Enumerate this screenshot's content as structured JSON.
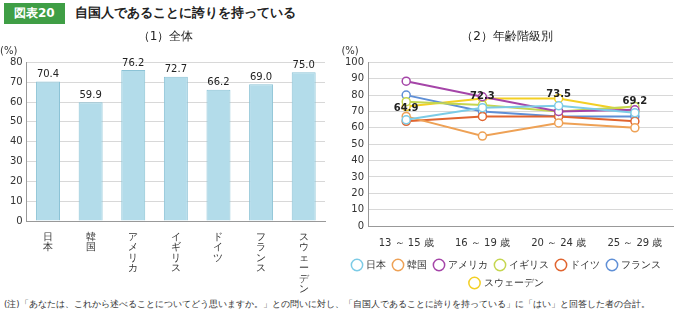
{
  "figure_label": "図表20",
  "title": "自国人であることに誇りを持っている",
  "note": "(注)「あなたは、これから述べることについてどう思いますか。」との問いに対し、「自国人であることに誇りを持っている」に「はい」と回答した者の合計。",
  "chart_data": [
    {
      "type": "bar",
      "title": "（1）全体",
      "ylabel": "(%)",
      "categories": [
        "日本",
        "韓国",
        "アメリカ",
        "イギリス",
        "ドイツ",
        "フランス",
        "スウェーデン"
      ],
      "values": [
        70.4,
        59.9,
        76.2,
        72.7,
        66.2,
        69.0,
        75.0
      ],
      "value_labels": [
        "70.4",
        "59.9",
        "76.2",
        "72.7",
        "66.2",
        "69.0",
        "75.0"
      ],
      "color": "#b3dcea",
      "ylim": [
        0,
        80
      ],
      "yticks": [
        0,
        10,
        20,
        30,
        40,
        50,
        60,
        70,
        80
      ],
      "grid": true,
      "data_labels": true
    },
    {
      "type": "line",
      "title": "（2）年齢階級別",
      "ylabel": "(%)",
      "categories": [
        "13 ～ 15 歳",
        "16 ～ 19 歳",
        "20 ～ 24 歳",
        "25 ～ 29 歳"
      ],
      "series": [
        {
          "name": "日本",
          "color": "#7ccbe6",
          "values": [
            64.9,
            72.3,
            73.5,
            69.2
          ],
          "data_labels": true
        },
        {
          "name": "韓国",
          "color": "#eea155",
          "values": [
            67,
            55,
            63,
            60
          ]
        },
        {
          "name": "アメリカ",
          "color": "#a545a8",
          "values": [
            88.5,
            79,
            70,
            71
          ]
        },
        {
          "name": "イギリス",
          "color": "#c5d64f",
          "values": [
            76,
            74,
            70,
            73
          ]
        },
        {
          "name": "ドイツ",
          "color": "#e0642f",
          "values": [
            64,
            67,
            67,
            64
          ]
        },
        {
          "name": "フランス",
          "color": "#5f8fd6",
          "values": [
            80,
            70,
            67,
            67
          ]
        },
        {
          "name": "スウェーデン",
          "color": "#f3cf24",
          "values": [
            73,
            78,
            78,
            70
          ]
        }
      ],
      "ylim": [
        0,
        100
      ],
      "yticks": [
        0,
        10,
        20,
        30,
        40,
        50,
        60,
        70,
        80,
        90,
        100
      ],
      "grid": true,
      "legend": "bottom",
      "marker": "circle"
    }
  ]
}
